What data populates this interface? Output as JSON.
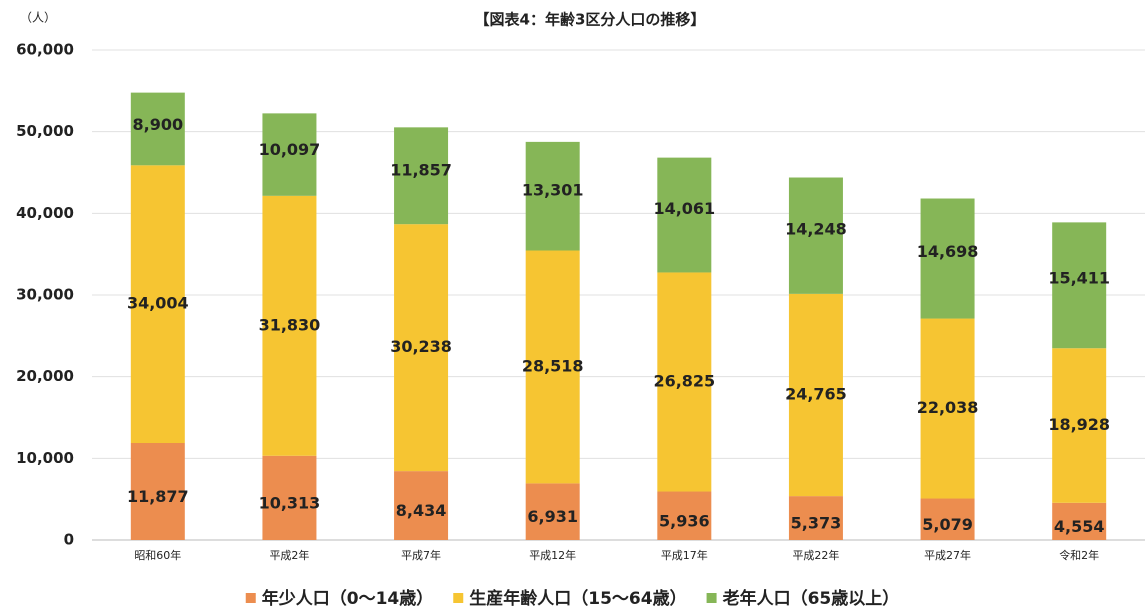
{
  "chart_data": {
    "type": "stacked_bar",
    "title": "【図表4：年齢3区分人口の推移】",
    "y_label": "（人）",
    "categories": [
      "昭和60年",
      "平成2年",
      "平成7年",
      "平成12年",
      "平成17年",
      "平成22年",
      "平成27年",
      "令和2年"
    ],
    "series": [
      {
        "name": "年少人口（0～14歳）",
        "color": "#ec8d4f",
        "values": [
          11877,
          10313,
          8434,
          6931,
          5936,
          5373,
          5079,
          4554
        ],
        "value_labels": [
          "11,877",
          "10,313",
          "8,434",
          "6,931",
          "5,936",
          "5,373",
          "5,079",
          "4,554"
        ]
      },
      {
        "name": "生産年齢人口（15～64歳）",
        "color": "#f6c532",
        "values": [
          34004,
          31830,
          30238,
          28518,
          26825,
          24765,
          22038,
          18928
        ],
        "value_labels": [
          "34,004",
          "31,830",
          "30,238",
          "28,518",
          "26,825",
          "24,765",
          "22,038",
          "18,928"
        ]
      },
      {
        "name": "老年人口（65歳以上）",
        "color": "#86b657",
        "values": [
          8900,
          10097,
          11857,
          13301,
          14061,
          14248,
          14698,
          15411
        ],
        "value_labels": [
          "8,900",
          "10,097",
          "11,857",
          "13,301",
          "14,061",
          "14,248",
          "14,698",
          "15,411"
        ]
      }
    ],
    "ylim": [
      0,
      60000
    ],
    "yticks": [
      0,
      {
        "value": 10000,
        "label": "10,000"
      },
      {
        "value": 20000,
        "label": "20,000"
      },
      {
        "value": 30000,
        "label": "30,000"
      },
      {
        "value": 40000,
        "label": "40,000"
      },
      {
        "value": 50000,
        "label": "50,000"
      },
      {
        "value": 60000,
        "label": "60,000"
      }
    ],
    "grid": true,
    "legend": "bottom"
  }
}
